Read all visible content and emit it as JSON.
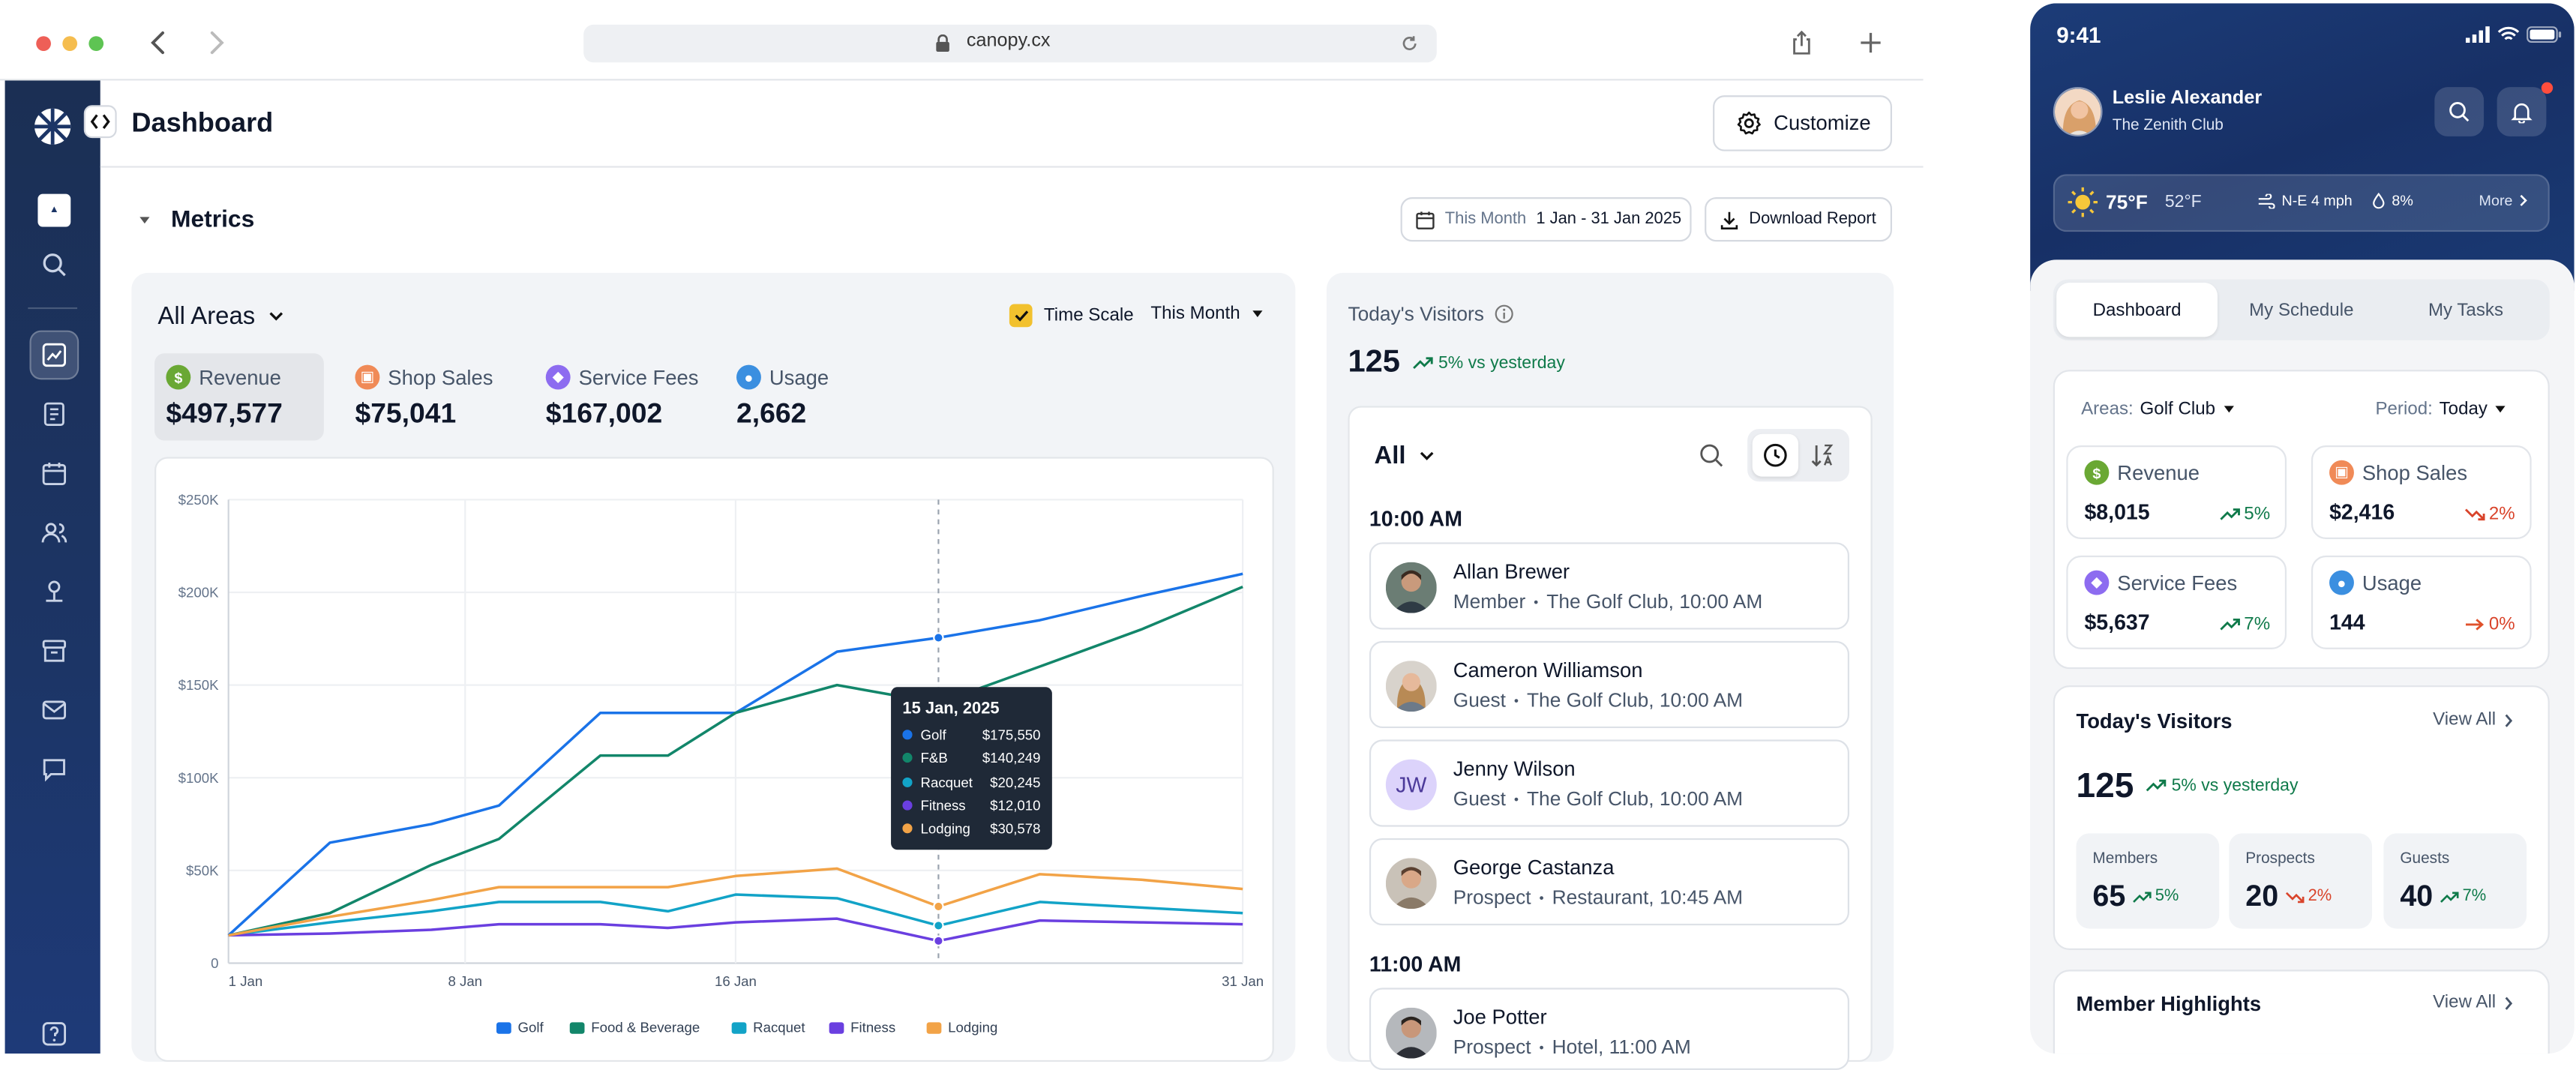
{
  "browser": {
    "url": "canopy.cx"
  },
  "header": {
    "title": "Dashboard",
    "customize_label": "Customize"
  },
  "metrics": {
    "section_title": "Metrics",
    "date_prefix": "This Month",
    "date_range": "1 Jan - 31 Jan 2025",
    "download_label": "Download Report"
  },
  "chart_panel": {
    "area_filter": "All Areas",
    "time_scale_label": "Time Scale",
    "time_scale_checked": true,
    "period_select": "This Month",
    "kpis": [
      {
        "label": "Revenue",
        "value": "$497,577",
        "icon": "dollar-icon",
        "color": "#6aa834",
        "selected": true
      },
      {
        "label": "Shop Sales",
        "value": "$75,041",
        "icon": "bag-icon",
        "color": "#f08a57"
      },
      {
        "label": "Service Fees",
        "value": "$167,002",
        "icon": "tag-icon",
        "color": "#8d6cf0"
      },
      {
        "label": "Usage",
        "value": "2,662",
        "icon": "person-icon",
        "color": "#3b8fe0"
      }
    ]
  },
  "chart_data": {
    "type": "line",
    "x": [
      1,
      4,
      7,
      9,
      12,
      14,
      16,
      19,
      22,
      25,
      28,
      31
    ],
    "x_tick_labels": [
      "1 Jan",
      "8 Jan",
      "16 Jan",
      "31 Jan"
    ],
    "x_tick_values": [
      1,
      8,
      16,
      31
    ],
    "y_ticks": [
      "0",
      "$50K",
      "$100K",
      "$150K",
      "$200K",
      "$250K"
    ],
    "ylim": [
      0,
      250000
    ],
    "grid": true,
    "legend_position": "bottom",
    "series": [
      {
        "name": "Golf",
        "color": "#1a73e8",
        "values": [
          15000,
          65000,
          75000,
          85000,
          135000,
          135000,
          135000,
          168000,
          175550,
          185000,
          198000,
          210000
        ]
      },
      {
        "name": "Food & Beverage",
        "color": "#12866a",
        "values": [
          15000,
          27000,
          53000,
          67000,
          112000,
          112000,
          135000,
          150000,
          140249,
          160000,
          180000,
          203000
        ]
      },
      {
        "name": "Racquet",
        "color": "#12a3c7",
        "values": [
          15000,
          22000,
          28000,
          33000,
          33000,
          28000,
          37000,
          35000,
          20245,
          33000,
          30000,
          27000
        ]
      },
      {
        "name": "Fitness",
        "color": "#6a3fe0",
        "values": [
          15000,
          16000,
          18000,
          21000,
          21000,
          19000,
          22000,
          24000,
          12010,
          23000,
          22000,
          21000
        ]
      },
      {
        "name": "Lodging",
        "color": "#f2a347",
        "values": [
          15000,
          25000,
          34000,
          41000,
          41000,
          41000,
          47000,
          51000,
          30578,
          48000,
          45000,
          40000
        ]
      }
    ],
    "tooltip": {
      "date": "15 Jan, 2025",
      "rows": [
        {
          "label": "Golf",
          "value": "$175,550",
          "color": "#1a73e8"
        },
        {
          "label": "F&B",
          "value": "$140,249",
          "color": "#12866a"
        },
        {
          "label": "Racquet",
          "value": "$20,245",
          "color": "#12a3c7"
        },
        {
          "label": "Fitness",
          "value": "$12,010",
          "color": "#6a3fe0"
        },
        {
          "label": "Lodging",
          "value": "$30,578",
          "color": "#f2a347"
        }
      ]
    }
  },
  "visitors_panel": {
    "title": "Today's Visitors",
    "count": "125",
    "change": "5% vs yesterday",
    "filter": "All",
    "groups": [
      {
        "time": "10:00 AM",
        "visitors": [
          {
            "name": "Allan Brewer",
            "role": "Member",
            "detail": "The Golf Club, 10:00 AM"
          },
          {
            "name": "Cameron Williamson",
            "role": "Guest",
            "detail": "The Golf Club, 10:00 AM"
          },
          {
            "name": "Jenny Wilson",
            "role": "Guest",
            "detail": "The Golf Club, 10:00 AM",
            "initials": "JW"
          },
          {
            "name": "George Castanza",
            "role": "Prospect",
            "detail": "Restaurant, 10:45 AM"
          }
        ]
      },
      {
        "time": "11:00 AM",
        "visitors": [
          {
            "name": "Joe Potter",
            "role": "Prospect",
            "detail": "Hotel, 11:00 AM"
          }
        ]
      }
    ]
  },
  "mobile": {
    "time": "9:41",
    "user_name": "Leslie Alexander",
    "club": "The Zenith Club",
    "weather": {
      "temp": "75°F",
      "low": "52°F",
      "wind": "N-E 4 mph",
      "rain": "8%",
      "more": "More"
    },
    "tabs": [
      "Dashboard",
      "My Schedule",
      "My Tasks"
    ],
    "areas_label": "Areas:",
    "areas_value": "Golf Club",
    "period_label": "Period:",
    "period_value": "Today",
    "kpis": [
      {
        "label": "Revenue",
        "value": "$8,015",
        "change": "5%",
        "dir": "up"
      },
      {
        "label": "Shop Sales",
        "value": "$2,416",
        "change": "2%",
        "dir": "down"
      },
      {
        "label": "Service Fees",
        "value": "$5,637",
        "change": "7%",
        "dir": "up"
      },
      {
        "label": "Usage",
        "value": "144",
        "change": "0%",
        "dir": "flat"
      }
    ],
    "visitors": {
      "title": "Today's Visitors",
      "view_all": "View All",
      "count": "125",
      "change": "5% vs yesterday",
      "stats": [
        {
          "label": "Members",
          "value": "65",
          "change": "5%",
          "dir": "up"
        },
        {
          "label": "Prospects",
          "value": "20",
          "change": "2%",
          "dir": "down"
        },
        {
          "label": "Guests",
          "value": "40",
          "change": "7%",
          "dir": "up"
        }
      ]
    },
    "highlights": {
      "title": "Member Highlights",
      "view_all": "View All"
    }
  }
}
